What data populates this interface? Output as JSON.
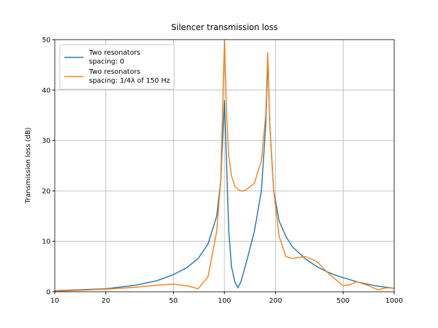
{
  "chart_data": {
    "type": "line",
    "title": "Silencer transmission loss",
    "ylabel": "Transmission loss (dB)",
    "xscale": "log",
    "grid": true,
    "legend": "upper left",
    "xlim": [
      10,
      1000
    ],
    "xticks": [
      10,
      20,
      50,
      100,
      200,
      500,
      1000
    ],
    "ylim": [
      0,
      50
    ],
    "yticks": [
      0,
      10,
      20,
      30,
      40,
      50
    ],
    "x": [
      10,
      20,
      30,
      40,
      50,
      60,
      70,
      80,
      90,
      95,
      100,
      103,
      106,
      110,
      115,
      120,
      125,
      130,
      135,
      150,
      165,
      175,
      180,
      185,
      195,
      210,
      230,
      250,
      300,
      350,
      400,
      450,
      500,
      550,
      600,
      700,
      800,
      900,
      1000
    ],
    "series": [
      {
        "name": "Two resonators\nspacing: 0",
        "color": "#1f77b4",
        "values": [
          0.2,
          0.6,
          1.3,
          2.2,
          3.4,
          4.8,
          6.6,
          9.5,
          15,
          22,
          38,
          25,
          12,
          5,
          2,
          0.8,
          2,
          4,
          6,
          12,
          20,
          33,
          46,
          33,
          20,
          14,
          11,
          9,
          6.5,
          5,
          4,
          3.3,
          2.8,
          2.4,
          2,
          1.5,
          1.1,
          0.9,
          0.7
        ]
      },
      {
        "name": "Two resonators\nspacing: 1/4λ of 150 Hz",
        "color": "#ff7f0e",
        "values": [
          0.1,
          0.5,
          0.9,
          1.3,
          1.5,
          1.2,
          0.6,
          3,
          12,
          22,
          50,
          35,
          27,
          23,
          21,
          20.3,
          20,
          20,
          20.3,
          21.5,
          26,
          35,
          47.5,
          33,
          20,
          11,
          7,
          6.6,
          7,
          6,
          4,
          2.5,
          1.2,
          1.4,
          2,
          1.3,
          0.4,
          0.8,
          0.7
        ]
      }
    ]
  }
}
